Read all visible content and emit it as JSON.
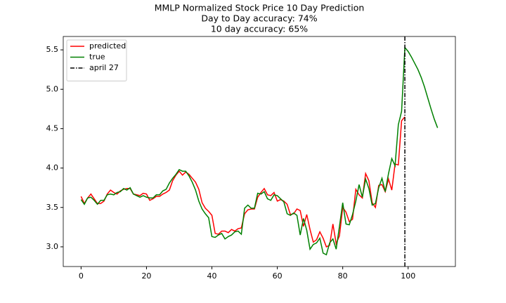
{
  "chart_data": {
    "type": "line",
    "title": [
      "MMLP Normalized Stock Price 10 Day Prediction",
      "Day to Day accuracy: 74%",
      "10 day accuracy: 65%"
    ],
    "x": [
      0,
      1,
      2,
      3,
      4,
      5,
      6,
      7,
      8,
      9,
      10,
      11,
      12,
      13,
      14,
      15,
      16,
      17,
      18,
      19,
      20,
      21,
      22,
      23,
      24,
      25,
      26,
      27,
      28,
      29,
      30,
      31,
      32,
      33,
      34,
      35,
      36,
      37,
      38,
      39,
      40,
      41,
      42,
      43,
      44,
      45,
      46,
      47,
      48,
      49,
      50,
      51,
      52,
      53,
      54,
      55,
      56,
      57,
      58,
      59,
      60,
      61,
      62,
      63,
      64,
      65,
      66,
      67,
      68,
      69,
      70,
      71,
      72,
      73,
      74,
      75,
      76,
      77,
      78,
      79,
      80,
      81,
      82,
      83,
      84,
      85,
      86,
      87,
      88,
      89,
      90,
      91,
      92,
      93,
      94,
      95,
      96,
      97,
      98,
      99,
      100,
      101,
      102,
      103,
      104,
      105,
      106,
      107,
      108,
      109
    ],
    "series": [
      {
        "name": "predicted",
        "color": "#ff0000",
        "values": [
          3.64,
          3.55,
          3.62,
          3.67,
          3.61,
          3.55,
          3.55,
          3.58,
          3.67,
          3.72,
          3.69,
          3.67,
          3.71,
          3.73,
          3.74,
          3.74,
          3.67,
          3.66,
          3.65,
          3.68,
          3.67,
          3.59,
          3.61,
          3.64,
          3.64,
          3.67,
          3.69,
          3.72,
          3.84,
          3.91,
          3.96,
          3.91,
          3.95,
          3.92,
          3.87,
          3.82,
          3.73,
          3.56,
          3.49,
          3.45,
          3.4,
          3.17,
          3.16,
          3.2,
          3.2,
          3.18,
          3.22,
          3.2,
          3.23,
          3.24,
          3.42,
          3.47,
          3.48,
          3.48,
          3.63,
          3.69,
          3.74,
          3.66,
          3.65,
          3.69,
          3.58,
          3.6,
          3.58,
          3.54,
          3.41,
          3.42,
          3.48,
          3.46,
          3.26,
          3.41,
          3.22,
          3.06,
          3.09,
          3.19,
          3.11,
          3.0,
          3.02,
          3.29,
          3.04,
          3.14,
          3.5,
          3.44,
          3.32,
          3.35,
          3.73,
          3.66,
          3.62,
          3.93,
          3.84,
          3.56,
          3.5,
          3.78,
          3.79,
          3.7,
          3.86,
          3.72,
          4.05,
          4.04,
          4.6,
          4.65,
          null,
          null,
          null,
          null,
          null,
          null,
          null,
          null,
          null,
          null
        ]
      },
      {
        "name": "true",
        "color": "#008000",
        "values": [
          3.6,
          3.54,
          3.62,
          3.63,
          3.59,
          3.54,
          3.59,
          3.59,
          3.66,
          3.67,
          3.66,
          3.69,
          3.7,
          3.74,
          3.72,
          3.75,
          3.67,
          3.65,
          3.63,
          3.65,
          3.63,
          3.62,
          3.62,
          3.66,
          3.66,
          3.71,
          3.73,
          3.81,
          3.87,
          3.92,
          3.98,
          3.96,
          3.96,
          3.9,
          3.82,
          3.72,
          3.58,
          3.48,
          3.42,
          3.37,
          3.13,
          3.12,
          3.15,
          3.17,
          3.1,
          3.13,
          3.15,
          3.19,
          3.2,
          3.16,
          3.49,
          3.53,
          3.49,
          3.49,
          3.68,
          3.67,
          3.7,
          3.61,
          3.59,
          3.66,
          3.65,
          3.61,
          3.57,
          3.42,
          3.4,
          3.43,
          3.4,
          3.15,
          3.36,
          3.21,
          2.97,
          3.03,
          3.05,
          3.11,
          2.92,
          2.9,
          3.05,
          3.1,
          2.97,
          3.26,
          3.56,
          3.29,
          3.28,
          3.41,
          3.58,
          3.79,
          3.63,
          3.86,
          3.74,
          3.53,
          3.55,
          3.75,
          3.87,
          3.7,
          3.93,
          4.12,
          4.03,
          4.55,
          4.72,
          5.53,
          5.48,
          5.41,
          5.33,
          5.25,
          5.15,
          5.03,
          4.89,
          4.75,
          4.62,
          4.51
        ]
      }
    ],
    "vlines": [
      {
        "name": "april 27",
        "x": 99,
        "color": "#000000"
      }
    ],
    "xlim": [
      -5.45,
      114.45
    ],
    "ylim": [
      2.75,
      5.67
    ],
    "xticks": [
      0,
      20,
      40,
      60,
      80,
      100
    ],
    "yticks": [
      {
        "value": 3,
        "label": "3.0"
      },
      3.5,
      {
        "value": 4,
        "label": "4.0"
      },
      4.5,
      {
        "value": 5,
        "label": "5.0"
      },
      5.5
    ],
    "grid": false,
    "legend": "upper left"
  }
}
